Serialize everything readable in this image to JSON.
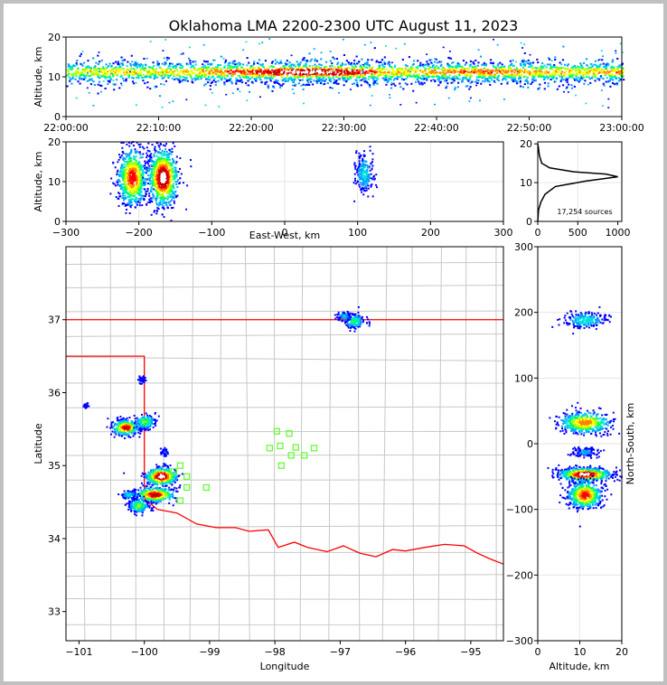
{
  "chart_data": [
    {
      "type": "scatter",
      "panel": "altitude-vs-time",
      "title": "Oklahoma LMA 2200-2300 UTC August 11, 2023",
      "ylabel": "Altitude, km",
      "xlabel": "",
      "xlim": [
        "22:00:00",
        "23:00:00"
      ],
      "ylim": [
        0,
        20
      ],
      "xticks": [
        "22:00:00",
        "22:10:00",
        "22:20:00",
        "22:30:00",
        "22:40:00",
        "22:50:00",
        "23:00:00"
      ],
      "yticks": [
        "0",
        "10",
        "20"
      ],
      "density_profile_minutes": [
        0,
        5,
        10,
        15,
        20,
        25,
        30,
        35,
        40,
        45,
        50,
        55,
        60
      ],
      "density_profile_relative": [
        0.45,
        0.55,
        0.5,
        0.6,
        0.75,
        0.95,
        0.85,
        0.55,
        0.6,
        0.65,
        0.6,
        0.55,
        0.6
      ]
    },
    {
      "type": "scatter",
      "panel": "altitude-vs-east-west",
      "xlabel": "East-West, km",
      "ylabel": "Altitude, km",
      "xlim": [
        -300,
        300
      ],
      "ylim": [
        0,
        20
      ],
      "xticks": [
        "−300",
        "−200",
        "−100",
        "0",
        "100",
        "200",
        "300"
      ],
      "yticks": [
        "0",
        "10",
        "20"
      ],
      "clusters": [
        {
          "x": -210,
          "y": 11,
          "sx": 10,
          "sy": 3.5,
          "weight": 0.8
        },
        {
          "x": -168,
          "y": 11,
          "sx": 10,
          "sy": 3.5,
          "weight": 1.0
        },
        {
          "x": 108,
          "y": 12,
          "sx": 6,
          "sy": 2.5,
          "weight": 0.25
        }
      ]
    },
    {
      "type": "line",
      "panel": "altitude-histogram",
      "xlim": [
        0,
        1000
      ],
      "ylim": [
        0,
        20
      ],
      "xticks": [
        "0",
        "500",
        "1000"
      ],
      "yticks": [
        "0",
        "10",
        "20"
      ],
      "annotation": "17,254 sources",
      "profile": [
        {
          "count": 0,
          "alt": 0
        },
        {
          "count": 10,
          "alt": 3
        },
        {
          "count": 40,
          "alt": 5
        },
        {
          "count": 90,
          "alt": 7
        },
        {
          "count": 220,
          "alt": 9
        },
        {
          "count": 600,
          "alt": 10.4
        },
        {
          "count": 1000,
          "alt": 11.5
        },
        {
          "count": 850,
          "alt": 12.2
        },
        {
          "count": 450,
          "alt": 12.8
        },
        {
          "count": 150,
          "alt": 13.8
        },
        {
          "count": 50,
          "alt": 15
        },
        {
          "count": 20,
          "alt": 17
        },
        {
          "count": 8,
          "alt": 19
        },
        {
          "count": 0,
          "alt": 20
        }
      ]
    },
    {
      "type": "scatter",
      "panel": "map-latitude-longitude",
      "xlabel": "Longitude",
      "ylabel": "Latitude",
      "xlim": [
        -101.2,
        -94.5
      ],
      "ylim": [
        32.6,
        38.0
      ],
      "xticks": [
        "−101",
        "−100",
        "−99",
        "−98",
        "−97",
        "−96",
        "−95"
      ],
      "yticks": [
        "33",
        "34",
        "35",
        "36",
        "37"
      ],
      "clusters": [
        {
          "lon": -100.3,
          "lat": 35.52,
          "slon": 0.1,
          "slat": 0.05,
          "weight": 0.8
        },
        {
          "lon": -100.0,
          "lat": 35.6,
          "slon": 0.08,
          "slat": 0.05,
          "weight": 0.4
        },
        {
          "lon": -99.75,
          "lat": 34.85,
          "slon": 0.12,
          "slat": 0.06,
          "weight": 1.0
        },
        {
          "lon": -99.85,
          "lat": 34.6,
          "slon": 0.15,
          "slat": 0.05,
          "weight": 0.8
        },
        {
          "lon": -100.1,
          "lat": 34.45,
          "slon": 0.08,
          "slat": 0.05,
          "weight": 0.4
        },
        {
          "lon": -100.25,
          "lat": 34.6,
          "slon": 0.06,
          "slat": 0.03,
          "weight": 0.25
        },
        {
          "lon": -96.8,
          "lat": 36.98,
          "slon": 0.08,
          "slat": 0.05,
          "weight": 0.35
        },
        {
          "lon": -96.95,
          "lat": 37.05,
          "slon": 0.05,
          "slat": 0.03,
          "weight": 0.2
        },
        {
          "lon": -99.7,
          "lat": 35.18,
          "slon": 0.03,
          "slat": 0.03,
          "weight": 0.1
        },
        {
          "lon": -100.05,
          "lat": 36.18,
          "slon": 0.03,
          "slat": 0.03,
          "weight": 0.06
        },
        {
          "lon": -100.9,
          "lat": 35.82,
          "slon": 0.02,
          "slat": 0.02,
          "weight": 0.04
        }
      ],
      "stations": [
        {
          "lon": -99.55,
          "lat": 34.92
        },
        {
          "lon": -99.45,
          "lat": 35.0
        },
        {
          "lon": -99.35,
          "lat": 34.85
        },
        {
          "lon": -99.35,
          "lat": 34.7
        },
        {
          "lon": -99.05,
          "lat": 34.7
        },
        {
          "lon": -99.45,
          "lat": 34.52
        },
        {
          "lon": -97.97,
          "lat": 35.47
        },
        {
          "lon": -97.78,
          "lat": 35.44
        },
        {
          "lon": -98.08,
          "lat": 35.24
        },
        {
          "lon": -97.92,
          "lat": 35.27
        },
        {
          "lon": -97.68,
          "lat": 35.25
        },
        {
          "lon": -97.75,
          "lat": 35.14
        },
        {
          "lon": -97.55,
          "lat": 35.14
        },
        {
          "lon": -97.4,
          "lat": 35.24
        },
        {
          "lon": -97.9,
          "lat": 35.0
        }
      ],
      "state_border_color": "#ff0000",
      "county_line_color": "#c8c8c8"
    },
    {
      "type": "scatter",
      "panel": "north-south-vs-altitude",
      "xlabel": "Altitude, km",
      "ylabel": "North-South, km",
      "xlim": [
        0,
        20
      ],
      "ylim": [
        -300,
        300
      ],
      "xticks": [
        "0",
        "10",
        "20"
      ],
      "yticks": [
        "−300",
        "−200",
        "−100",
        "0",
        "100",
        "200",
        "300"
      ],
      "clusters": [
        {
          "x": 11,
          "y": 188,
          "sx": 2.5,
          "sy": 6,
          "weight": 0.3
        },
        {
          "x": 11,
          "y": 32,
          "sx": 3,
          "sy": 8,
          "weight": 0.7
        },
        {
          "x": 11,
          "y": -13,
          "sx": 1.5,
          "sy": 4,
          "weight": 0.15
        },
        {
          "x": 11,
          "y": -47,
          "sx": 3,
          "sy": 5,
          "weight": 1.0
        },
        {
          "x": 11,
          "y": -78,
          "sx": 2,
          "sy": 10,
          "weight": 0.8
        }
      ]
    }
  ],
  "colormap": [
    "#0000ff",
    "#00a0ff",
    "#00e0e0",
    "#00ff60",
    "#a0ff00",
    "#ffff00",
    "#ff8000",
    "#ff0000",
    "#c00000",
    "#ffffff"
  ],
  "station_color": "#66ff33"
}
